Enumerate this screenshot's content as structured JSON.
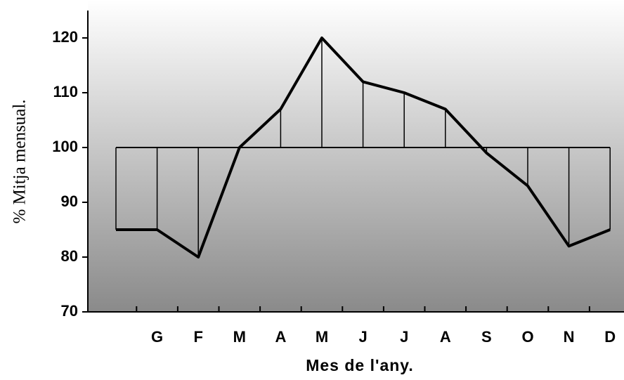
{
  "chart_data": {
    "type": "line",
    "x_label": "Mes de l'any.",
    "y_label": "% Mitja mensual.",
    "categories": [
      null,
      "G",
      "F",
      "M",
      "A",
      "M",
      "J",
      "J",
      "A",
      "S",
      "O",
      "N",
      "D"
    ],
    "values": [
      85,
      85,
      80,
      100,
      107,
      120,
      112,
      110,
      107,
      99,
      93,
      82,
      85
    ],
    "baseline": 100,
    "color": "#000000",
    "ylim": [
      70,
      125
    ],
    "yticks": [
      70,
      80,
      90,
      100,
      110,
      120
    ]
  }
}
